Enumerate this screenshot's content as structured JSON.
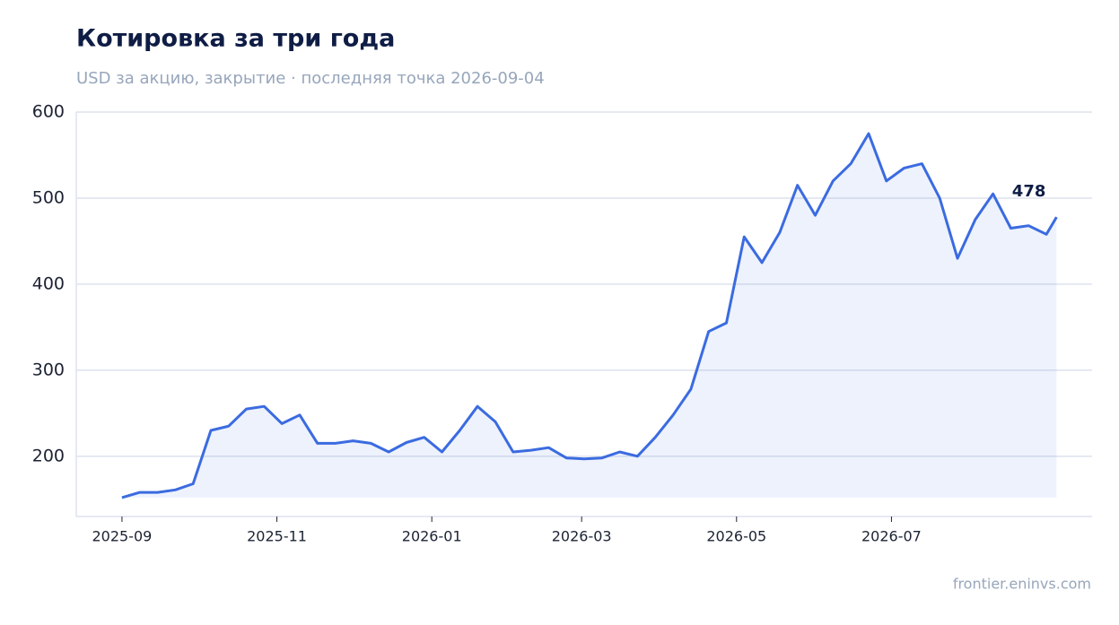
{
  "chart_data": {
    "type": "line",
    "title": "Котировка за три года",
    "subtitle": "USD за акцию, закрытие · последняя точка 2026-09-04",
    "source": "frontier.eninvs.com",
    "x": [
      "2025-09-01",
      "2025-09-08",
      "2025-09-15",
      "2025-09-22",
      "2025-09-29",
      "2025-10-06",
      "2025-10-13",
      "2025-10-20",
      "2025-10-27",
      "2025-11-03",
      "2025-11-10",
      "2025-11-17",
      "2025-11-24",
      "2025-12-01",
      "2025-12-08",
      "2025-12-15",
      "2025-12-22",
      "2025-12-29",
      "2026-01-05",
      "2026-01-12",
      "2026-01-19",
      "2026-01-26",
      "2026-02-02",
      "2026-02-09",
      "2026-02-16",
      "2026-02-23",
      "2026-03-02",
      "2026-03-09",
      "2026-03-16",
      "2026-03-23",
      "2026-03-30",
      "2026-04-06",
      "2026-04-13",
      "2026-04-20",
      "2026-04-27",
      "2026-05-04",
      "2026-05-11",
      "2026-05-18",
      "2026-05-25",
      "2026-06-01",
      "2026-06-08",
      "2026-06-15",
      "2026-06-22",
      "2026-06-29",
      "2026-07-06",
      "2026-07-13",
      "2026-07-20",
      "2026-07-27",
      "2026-08-03",
      "2026-08-10",
      "2026-08-17",
      "2026-08-24",
      "2026-08-31",
      "2026-09-04"
    ],
    "series": [
      {
        "name": "Котировка",
        "color": "#3b6be0",
        "values": [
          152,
          158,
          158,
          161,
          168,
          230,
          235,
          255,
          258,
          238,
          248,
          215,
          215,
          218,
          215,
          205,
          216,
          222,
          205,
          230,
          258,
          240,
          205,
          207,
          210,
          198,
          197,
          198,
          205,
          200,
          222,
          248,
          278,
          345,
          355,
          455,
          425,
          460,
          515,
          480,
          520,
          540,
          575,
          520,
          535,
          540,
          500,
          430,
          475,
          505,
          465,
          468,
          458,
          478
        ]
      }
    ],
    "xlim": [
      "2025-08-14",
      "2026-09-18"
    ],
    "xticks": [
      {
        "value": "2025-09-01",
        "label": "2025-09"
      },
      {
        "value": "2025-11-01",
        "label": "2025-11"
      },
      {
        "value": "2026-01-01",
        "label": "2026-01"
      },
      {
        "value": "2026-03-01",
        "label": "2026-03"
      },
      {
        "value": "2026-05-01",
        "label": "2026-05"
      },
      {
        "value": "2026-07-01",
        "label": "2026-07"
      }
    ],
    "ylim": [
      130,
      600
    ],
    "yticks": [
      200,
      300,
      400,
      500,
      600
    ],
    "grid": true
  }
}
